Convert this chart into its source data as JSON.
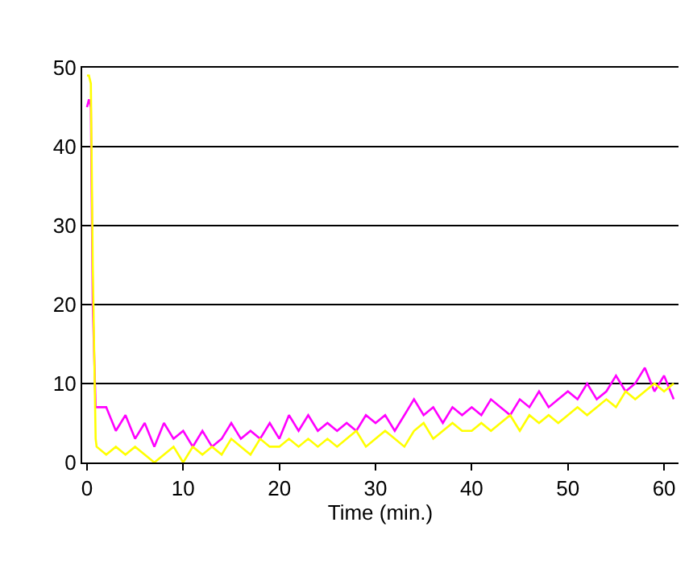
{
  "chart_data": {
    "type": "line",
    "xlabel": "Time (min.)",
    "xlim": [
      -0.5,
      61.5
    ],
    "xticks": [
      0,
      10,
      20,
      30,
      40,
      50,
      60
    ],
    "ylim": [
      0,
      50
    ],
    "yticks": [
      0,
      10,
      20,
      30,
      40,
      50
    ],
    "grid": "y",
    "marker": "none",
    "line_style": "solid",
    "series": [
      {
        "color": "#ff00ff",
        "x": [
          0,
          0.2,
          0.4,
          0.6,
          0.9,
          1,
          2,
          3,
          4,
          5,
          6,
          7,
          8,
          9,
          10,
          11,
          12,
          13,
          14,
          15,
          16,
          17,
          18,
          19,
          20,
          21,
          22,
          23,
          24,
          25,
          26,
          27,
          28,
          29,
          30,
          31,
          32,
          33,
          34,
          35,
          36,
          37,
          38,
          39,
          40,
          41,
          42,
          43,
          44,
          45,
          46,
          47,
          48,
          49,
          50,
          51,
          52,
          53,
          54,
          55,
          56,
          57,
          58,
          59,
          60,
          61
        ],
        "values": [
          45,
          46,
          45,
          20,
          7,
          7,
          7,
          4,
          6,
          3,
          5,
          2,
          5,
          3,
          4,
          2,
          4,
          2,
          3,
          5,
          3,
          4,
          3,
          5,
          3,
          6,
          4,
          6,
          4,
          5,
          4,
          5,
          4,
          6,
          5,
          6,
          4,
          6,
          8,
          6,
          7,
          5,
          7,
          6,
          7,
          6,
          8,
          7,
          6,
          8,
          7,
          9,
          7,
          8,
          9,
          8,
          10,
          8,
          9,
          11,
          9,
          10,
          12,
          9,
          11,
          8
        ]
      },
      {
        "color": "#ffff00",
        "x": [
          0,
          0.2,
          0.4,
          0.6,
          0.9,
          1,
          2,
          3,
          4,
          5,
          6,
          7,
          8,
          9,
          10,
          11,
          12,
          13,
          14,
          15,
          16,
          17,
          18,
          19,
          20,
          21,
          22,
          23,
          24,
          25,
          26,
          27,
          28,
          29,
          30,
          31,
          32,
          33,
          34,
          35,
          36,
          37,
          38,
          39,
          40,
          41,
          42,
          43,
          44,
          45,
          46,
          47,
          48,
          49,
          50,
          51,
          52,
          53,
          54,
          55,
          56,
          57,
          58,
          59,
          60,
          61
        ],
        "values": [
          49,
          49,
          48,
          25,
          3,
          2,
          1,
          2,
          1,
          2,
          1,
          0,
          1,
          2,
          0,
          2,
          1,
          2,
          1,
          3,
          2,
          1,
          3,
          2,
          2,
          3,
          2,
          3,
          2,
          3,
          2,
          3,
          4,
          2,
          3,
          4,
          3,
          2,
          4,
          5,
          3,
          4,
          5,
          4,
          4,
          5,
          4,
          5,
          6,
          4,
          6,
          5,
          6,
          5,
          6,
          7,
          6,
          7,
          8,
          7,
          9,
          8,
          9,
          10,
          9,
          10
        ]
      }
    ]
  }
}
